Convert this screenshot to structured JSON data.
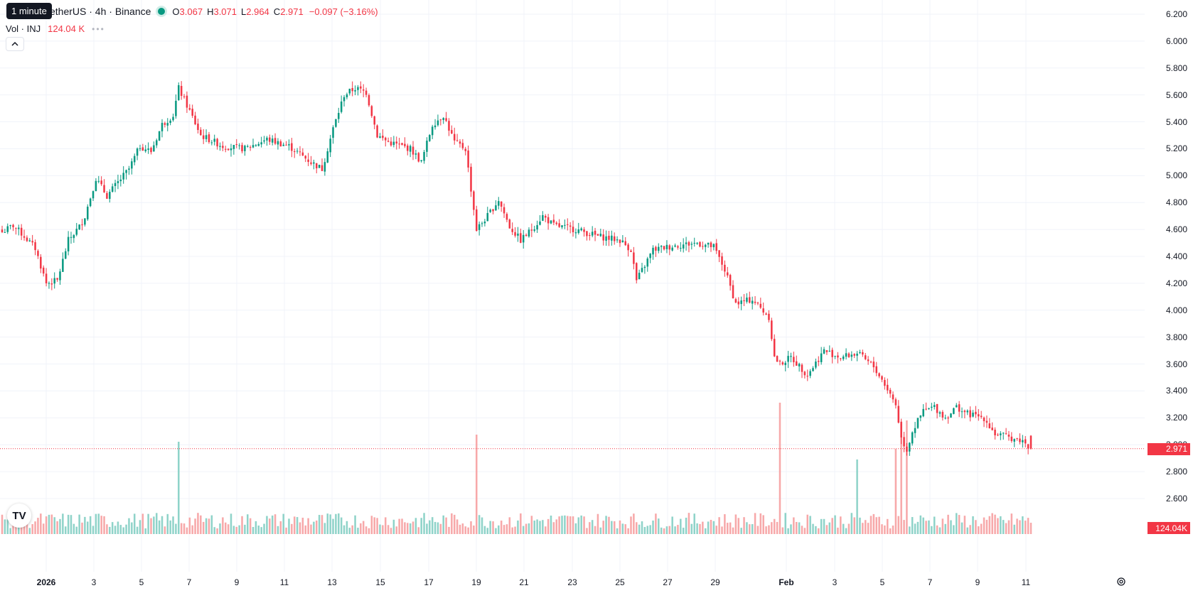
{
  "legend": {
    "symbol": "etherUS · 4h · Binance",
    "o_label": "O",
    "o_value": "3.067",
    "h_label": "H",
    "h_value": "3.071",
    "l_label": "L",
    "l_value": "2.964",
    "c_label": "C",
    "c_value": "2.971",
    "change": "−0.097 (−3.16%)",
    "vol_label": "Vol · INJ",
    "vol_value": "124.04 K",
    "tooltip": "1 minute"
  },
  "logo_text": "TV",
  "colors": {
    "up": "#089981",
    "down": "#f23645",
    "up_vol": "#8fd3c9",
    "down_vol": "#f7a8a9",
    "grid": "#f0f3fa"
  },
  "price_scale": {
    "labels": [
      "6.200",
      "6.000",
      "5.800",
      "5.600",
      "5.400",
      "5.200",
      "5.000",
      "4.800",
      "4.600",
      "4.400",
      "4.200",
      "4.000",
      "3.800",
      "3.600",
      "3.400",
      "3.200",
      "3.000",
      "2.800",
      "2.600"
    ],
    "current_price": "2.971",
    "current_volume": "124.04K"
  },
  "time_scale": {
    "labels": [
      "2026",
      "3",
      "5",
      "7",
      "9",
      "11",
      "13",
      "15",
      "17",
      "19",
      "21",
      "23",
      "25",
      "27",
      "29",
      "Feb",
      "3",
      "5",
      "7",
      "9",
      "11"
    ]
  },
  "icons": {
    "settings": "settings-icon",
    "collapse": "chevron-up-icon"
  },
  "chart_data": {
    "type": "candlestick",
    "timeframe": "4h",
    "ylim": [
      2.5,
      6.25
    ],
    "last_close": 2.971,
    "anchors_close": [
      [
        0,
        4.58
      ],
      [
        4,
        4.63
      ],
      [
        8,
        4.55
      ],
      [
        12,
        4.46
      ],
      [
        16,
        4.2
      ],
      [
        20,
        4.22
      ],
      [
        24,
        4.52
      ],
      [
        28,
        4.62
      ],
      [
        30,
        4.7
      ],
      [
        34,
        4.98
      ],
      [
        38,
        4.85
      ],
      [
        42,
        4.95
      ],
      [
        46,
        5.05
      ],
      [
        50,
        5.22
      ],
      [
        54,
        5.18
      ],
      [
        58,
        5.38
      ],
      [
        62,
        5.45
      ],
      [
        64,
        5.65
      ],
      [
        68,
        5.48
      ],
      [
        72,
        5.3
      ],
      [
        80,
        5.22
      ],
      [
        88,
        5.2
      ],
      [
        96,
        5.27
      ],
      [
        104,
        5.22
      ],
      [
        112,
        5.1
      ],
      [
        116,
        5.05
      ],
      [
        120,
        5.35
      ],
      [
        124,
        5.6
      ],
      [
        128,
        5.65
      ],
      [
        132,
        5.62
      ],
      [
        136,
        5.3
      ],
      [
        140,
        5.25
      ],
      [
        148,
        5.2
      ],
      [
        152,
        5.1
      ],
      [
        156,
        5.38
      ],
      [
        160,
        5.45
      ],
      [
        164,
        5.25
      ],
      [
        168,
        5.2
      ],
      [
        170,
        4.9
      ],
      [
        172,
        4.6
      ],
      [
        176,
        4.7
      ],
      [
        180,
        4.82
      ],
      [
        184,
        4.62
      ],
      [
        188,
        4.52
      ],
      [
        192,
        4.6
      ],
      [
        196,
        4.7
      ],
      [
        200,
        4.63
      ],
      [
        208,
        4.6
      ],
      [
        216,
        4.55
      ],
      [
        224,
        4.52
      ],
      [
        228,
        4.45
      ],
      [
        230,
        4.22
      ],
      [
        236,
        4.45
      ],
      [
        244,
        4.48
      ],
      [
        252,
        4.5
      ],
      [
        258,
        4.47
      ],
      [
        262,
        4.3
      ],
      [
        266,
        4.05
      ],
      [
        272,
        4.08
      ],
      [
        278,
        3.95
      ],
      [
        280,
        3.65
      ],
      [
        282,
        3.6
      ],
      [
        286,
        3.65
      ],
      [
        292,
        3.52
      ],
      [
        298,
        3.7
      ],
      [
        304,
        3.65
      ],
      [
        310,
        3.68
      ],
      [
        316,
        3.58
      ],
      [
        320,
        3.45
      ],
      [
        324,
        3.3
      ],
      [
        326,
        3.05
      ],
      [
        328,
        2.96
      ],
      [
        330,
        3.1
      ],
      [
        334,
        3.25
      ],
      [
        338,
        3.28
      ],
      [
        342,
        3.2
      ],
      [
        346,
        3.28
      ],
      [
        350,
        3.23
      ],
      [
        356,
        3.2
      ],
      [
        360,
        3.08
      ],
      [
        366,
        3.05
      ],
      [
        370,
        3.03
      ],
      [
        373,
        2.971
      ]
    ],
    "volume_spikes": {
      "64": 130,
      "172": 140,
      "282": 185,
      "310": 105,
      "324": 120,
      "326": 155,
      "328": 160
    }
  }
}
